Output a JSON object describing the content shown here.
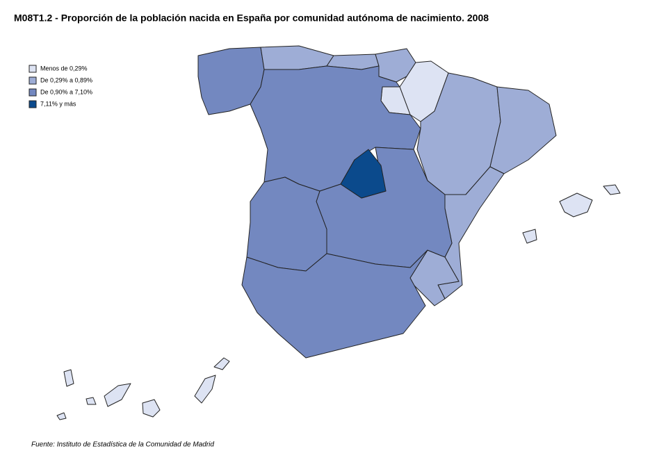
{
  "header": {
    "title": "M08T1.2 - Proporción de la población nacida en España por comunidad autónoma de nacimiento. 2008"
  },
  "legend": [
    {
      "label": "Menos de 0,29%",
      "color": "#dde3f3"
    },
    {
      "label": "De 0,29% a 0,89%",
      "color": "#9eadd6"
    },
    {
      "label": "De 0,90% a 7,10%",
      "color": "#7388c0"
    },
    {
      "label": "7,11% y más",
      "color": "#0b4a8c"
    }
  ],
  "footer": {
    "source": "Fuente: Instituto de Estadística de la Comunidad de Madrid"
  }
}
